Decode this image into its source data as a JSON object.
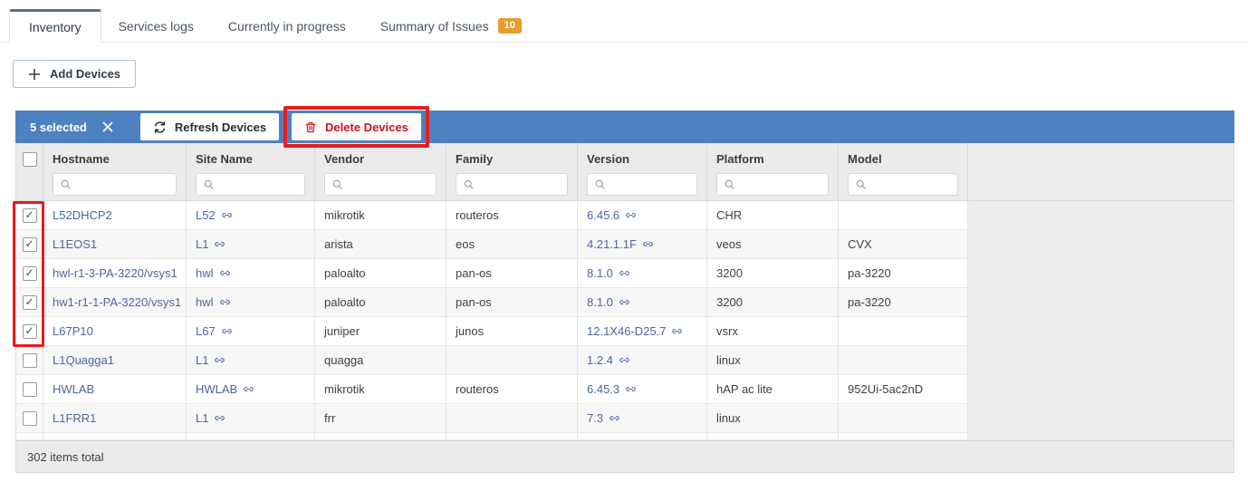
{
  "tabs": [
    {
      "label": "Inventory",
      "active": true
    },
    {
      "label": "Services logs",
      "active": false
    },
    {
      "label": "Currently in progress",
      "active": false
    },
    {
      "label": "Summary of Issues",
      "active": false,
      "badge": "10"
    }
  ],
  "add_button": {
    "label": "Add Devices"
  },
  "toolbar": {
    "selected_text": "5 selected",
    "refresh_label": "Refresh Devices",
    "delete_label": "Delete Devices"
  },
  "table": {
    "columns": [
      "Hostname",
      "Site Name",
      "Vendor",
      "Family",
      "Version",
      "Platform",
      "Model"
    ],
    "search_placeholder": "",
    "rows": [
      {
        "checked": true,
        "hostname": "L52DHCP2",
        "site": "L52",
        "vendor": "mikrotik",
        "family": "routeros",
        "version": "6.45.6",
        "platform": "CHR",
        "model": ""
      },
      {
        "checked": true,
        "hostname": "L1EOS1",
        "site": "L1",
        "vendor": "arista",
        "family": "eos",
        "version": "4.21.1.1F",
        "platform": "veos",
        "model": "CVX"
      },
      {
        "checked": true,
        "hostname": "hwl-r1-3-PA-3220/vsys1",
        "site": "hwl",
        "vendor": "paloalto",
        "family": "pan-os",
        "version": "8.1.0",
        "platform": "3200",
        "model": "pa-3220"
      },
      {
        "checked": true,
        "hostname": "hw1-r1-1-PA-3220/vsys1",
        "site": "hwl",
        "vendor": "paloalto",
        "family": "pan-os",
        "version": "8.1.0",
        "platform": "3200",
        "model": "pa-3220"
      },
      {
        "checked": true,
        "hostname": "L67P10",
        "site": "L67",
        "vendor": "juniper",
        "family": "junos",
        "version": "12.1X46-D25.7",
        "platform": "vsrx",
        "model": ""
      },
      {
        "checked": false,
        "hostname": "L1Quagga1",
        "site": "L1",
        "vendor": "quagga",
        "family": "",
        "version": "1.2.4",
        "platform": "linux",
        "model": ""
      },
      {
        "checked": false,
        "hostname": "HWLAB",
        "site": "HWLAB",
        "vendor": "mikrotik",
        "family": "routeros",
        "version": "6.45.3",
        "platform": "hAP ac lite",
        "model": "952Ui-5ac2nD"
      },
      {
        "checked": false,
        "hostname": "L1FRR1",
        "site": "L1",
        "vendor": "frr",
        "family": "",
        "version": "7.3",
        "platform": "linux",
        "model": ""
      }
    ],
    "footer_text": "302 items total"
  },
  "annotations": [
    {
      "target": "delete-devices-button"
    },
    {
      "target": "selected-row-checkboxes"
    }
  ],
  "icons": {
    "clear": "close-x",
    "refresh": "sync-arrows",
    "delete": "trash",
    "search": "magnifier",
    "link": "chain-link",
    "add": "plus",
    "check": "checkmark"
  },
  "colors": {
    "toolbar_blue": "#4e81c0",
    "badge_orange": "#e89b2e",
    "link_blue": "#4c669f",
    "delete_red": "#cf1322",
    "annotation_red": "#e71d1d",
    "active_tab_border": "#5a6d8f"
  }
}
